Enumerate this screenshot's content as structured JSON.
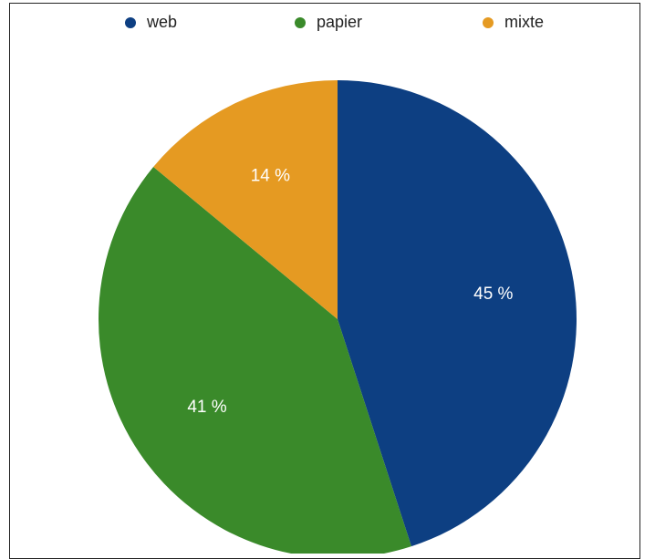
{
  "chart_data": {
    "type": "pie",
    "categories": [
      "web",
      "papier",
      "mixte"
    ],
    "values": [
      45,
      41,
      14
    ],
    "labels": [
      "45 %",
      "41 %",
      "14 %"
    ],
    "colors": [
      "#0d3f82",
      "#3a8a2a",
      "#e59a22"
    ],
    "legend_position": "top"
  }
}
